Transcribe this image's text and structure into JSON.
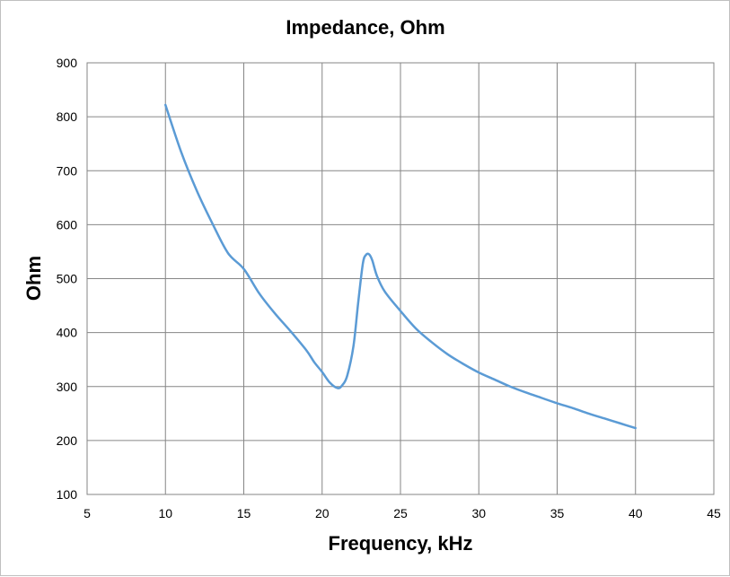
{
  "chart_data": {
    "type": "line",
    "title": "Impedance, Ohm",
    "xlabel": "Frequency, kHz",
    "ylabel": "Ohm",
    "xlim": [
      5,
      45
    ],
    "ylim": [
      100,
      900
    ],
    "xticks": [
      "5",
      "10",
      "15",
      "20",
      "25",
      "30",
      "35",
      "40",
      "45"
    ],
    "yticks": [
      "100",
      "200",
      "300",
      "400",
      "500",
      "600",
      "700",
      "800",
      "900"
    ],
    "grid": true,
    "legend": "none",
    "series": [
      {
        "color": "#5b9bd5",
        "x": [
          10,
          11,
          12,
          13,
          14,
          15,
          16,
          17,
          18,
          19,
          19.5,
          20,
          20.5,
          21,
          21.3,
          21.6,
          22,
          22.3,
          22.6,
          22.8,
          23,
          23.2,
          23.5,
          24,
          25,
          26,
          27,
          28,
          29,
          30,
          31,
          32,
          33,
          34,
          35,
          36,
          37,
          38,
          39,
          40
        ],
        "y": [
          822,
          735,
          663,
          602,
          547,
          518,
          472,
          435,
          402,
          367,
          345,
          327,
          307,
          297,
          303,
          320,
          375,
          455,
          528,
          544,
          545,
          534,
          505,
          476,
          440,
          407,
          382,
          360,
          342,
          326,
          313,
          300,
          289,
          279,
          269,
          260,
          250,
          241,
          232,
          223
        ]
      }
    ]
  }
}
